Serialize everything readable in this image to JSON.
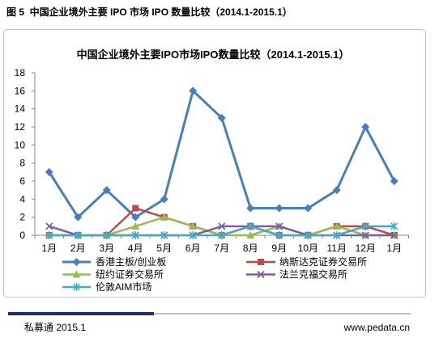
{
  "figure": {
    "caption": "图 5  中国企业境外主要 IPO 市场 IPO 数量比较（2014.1-2015.1）"
  },
  "chart_data": {
    "type": "line",
    "title": "中国企业境外主要IPO市场IPO数量比较（2014.1-2015.1）",
    "categories": [
      "1月",
      "2月",
      "3月",
      "4月",
      "5月",
      "6月",
      "7月",
      "8月",
      "9月",
      "10月",
      "11月",
      "12月",
      "1月"
    ],
    "ylim": [
      0,
      18
    ],
    "yticks": [
      0,
      2,
      4,
      6,
      8,
      10,
      12,
      14,
      16,
      18
    ],
    "grid": false,
    "legend": "bottom",
    "series": [
      {
        "name": "香港主板/创业板",
        "values": [
          7,
          2,
          5,
          2,
          4,
          16,
          13,
          3,
          3,
          3,
          5,
          12,
          6
        ],
        "color": "#4a7ebb",
        "marker": "diamond"
      },
      {
        "name": "纳斯达克证券交易所",
        "values": [
          0,
          0,
          0,
          3,
          2,
          1,
          0,
          1,
          0,
          0,
          1,
          1,
          0
        ],
        "color": "#be4b48",
        "marker": "square"
      },
      {
        "name": "纽约证券交易所",
        "values": [
          0,
          0,
          0,
          1,
          2,
          1,
          0,
          0,
          1,
          0,
          1,
          0,
          0
        ],
        "color": "#98b954",
        "marker": "triangle"
      },
      {
        "name": "法兰克福交易所",
        "values": [
          1,
          0,
          0,
          0,
          0,
          0,
          1,
          1,
          1,
          0,
          0,
          0,
          0
        ],
        "color": "#7d60a0",
        "marker": "x"
      },
      {
        "name": "伦敦AIM市场",
        "values": [
          0,
          0,
          0,
          0,
          0,
          0,
          0,
          1,
          0,
          0,
          0,
          1,
          1
        ],
        "color": "#46aac5",
        "marker": "asterisk"
      }
    ]
  },
  "footer": {
    "source": "私募通 2015.1",
    "website": "www.pedata.cn"
  },
  "colors": {
    "axis": "#868686",
    "frame": "#bfbfbf",
    "footer_bar": "#1f2d6b",
    "footer_line": "#bfbfbf"
  }
}
